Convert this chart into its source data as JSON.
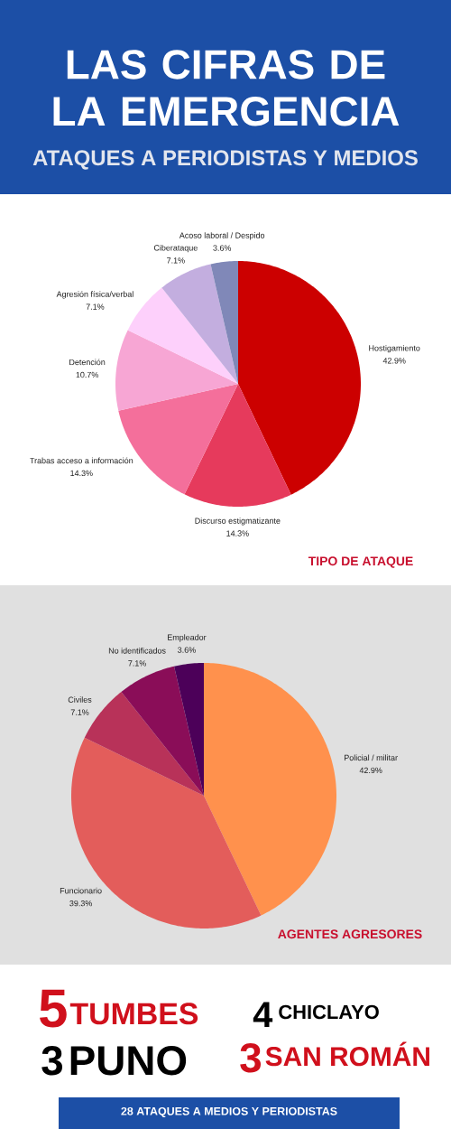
{
  "chart_data": [
    {
      "type": "other",
      "title": "LAS CIFRAS DE LA EMERGENCIA",
      "subtitle": "ATAQUES A PERIODISTAS Y MEDIOS"
    },
    {
      "type": "pie",
      "title": "TIPO DE ATAQUE",
      "categories": [
        "Hostigamiento",
        "Discurso estigmatizante",
        "Trabas acceso a información",
        "Detención",
        "Agresión física/verbal",
        "Ciberataque",
        "Acoso laboral / Despido"
      ],
      "values": [
        42.9,
        14.3,
        14.3,
        10.7,
        7.1,
        7.1,
        3.6
      ],
      "value_labels": [
        "42.9%",
        "14.3%",
        "14.3%",
        "10.7%",
        "7.1%",
        "7.1%",
        "3.6%"
      ],
      "colors": [
        "#cc0000",
        "#e63a5c",
        "#f46f9b",
        "#f7a6d4",
        "#fdd0fb",
        "#c3aedf",
        "#8088b8"
      ]
    },
    {
      "type": "pie",
      "title": "AGENTES AGRESORES",
      "categories": [
        "Policial / militar",
        "Funcionario",
        "Civiles",
        "No identificados",
        "Empleador"
      ],
      "values": [
        42.9,
        39.3,
        7.1,
        7.1,
        3.6
      ],
      "value_labels": [
        "42.9%",
        "39.3%",
        "7.1%",
        "7.1%",
        "3.6%"
      ],
      "colors": [
        "#ff914d",
        "#e35d5b",
        "#b83259",
        "#8a0d58",
        "#4c0059"
      ]
    },
    {
      "type": "other",
      "categories": [
        "TUMBES",
        "CHICLAYO",
        "PUNO",
        "SAN ROMÁN"
      ],
      "values": [
        5,
        4,
        3,
        3
      ],
      "colors": [
        "#d0101c",
        "#000000",
        "#000000",
        "#d0101c"
      ],
      "data_labels": true,
      "annotations": [
        "28 ATAQUES A MEDIOS Y PERIODISTAS"
      ]
    }
  ]
}
